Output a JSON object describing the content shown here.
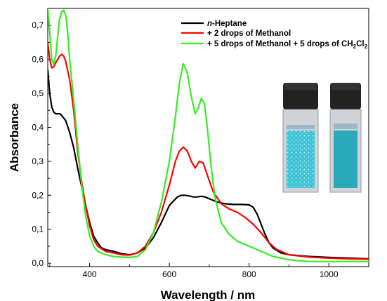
{
  "chart_data": {
    "type": "line",
    "xlabel": "Wavelength / nm",
    "ylabel": "Absorbance",
    "xlim": [
      295,
      1100
    ],
    "ylim": [
      -0.01,
      0.75
    ],
    "x_ticks": [
      400,
      600,
      800,
      1000
    ],
    "y_ticks": [
      "0,0",
      "0,1",
      "0,2",
      "0,3",
      "0,4",
      "0,5",
      "0,6",
      "0,7"
    ],
    "y_tick_values": [
      0.0,
      0.1,
      0.2,
      0.3,
      0.4,
      0.5,
      0.6,
      0.7
    ],
    "legend_position": "top-right",
    "series": [
      {
        "name": "n-Heptane",
        "name_italic": "n",
        "name_rest": "-Heptane",
        "color": "#000000",
        "points": [
          [
            295,
            0.57
          ],
          [
            300,
            0.5
          ],
          [
            305,
            0.46
          ],
          [
            310,
            0.445
          ],
          [
            315,
            0.44
          ],
          [
            320,
            0.44
          ],
          [
            325,
            0.44
          ],
          [
            330,
            0.435
          ],
          [
            340,
            0.42
          ],
          [
            350,
            0.385
          ],
          [
            360,
            0.34
          ],
          [
            370,
            0.28
          ],
          [
            380,
            0.225
          ],
          [
            390,
            0.17
          ],
          [
            400,
            0.12
          ],
          [
            410,
            0.08
          ],
          [
            420,
            0.06
          ],
          [
            430,
            0.045
          ],
          [
            440,
            0.04
          ],
          [
            460,
            0.035
          ],
          [
            480,
            0.028
          ],
          [
            500,
            0.025
          ],
          [
            520,
            0.03
          ],
          [
            540,
            0.045
          ],
          [
            560,
            0.075
          ],
          [
            580,
            0.12
          ],
          [
            600,
            0.17
          ],
          [
            620,
            0.195
          ],
          [
            630,
            0.2
          ],
          [
            640,
            0.2
          ],
          [
            650,
            0.198
          ],
          [
            660,
            0.195
          ],
          [
            670,
            0.195
          ],
          [
            680,
            0.197
          ],
          [
            690,
            0.195
          ],
          [
            700,
            0.19
          ],
          [
            720,
            0.18
          ],
          [
            740,
            0.175
          ],
          [
            760,
            0.173
          ],
          [
            780,
            0.173
          ],
          [
            800,
            0.172
          ],
          [
            810,
            0.165
          ],
          [
            820,
            0.145
          ],
          [
            830,
            0.115
          ],
          [
            840,
            0.085
          ],
          [
            850,
            0.06
          ],
          [
            860,
            0.045
          ],
          [
            880,
            0.03
          ],
          [
            900,
            0.025
          ],
          [
            950,
            0.02
          ],
          [
            1000,
            0.017
          ],
          [
            1050,
            0.015
          ],
          [
            1100,
            0.013
          ]
        ]
      },
      {
        "name": "+ 2 drops of Methanol",
        "color": "#ff0000",
        "points": [
          [
            295,
            0.65
          ],
          [
            300,
            0.6
          ],
          [
            305,
            0.575
          ],
          [
            310,
            0.578
          ],
          [
            315,
            0.59
          ],
          [
            320,
            0.6
          ],
          [
            325,
            0.61
          ],
          [
            330,
            0.615
          ],
          [
            335,
            0.61
          ],
          [
            340,
            0.595
          ],
          [
            350,
            0.54
          ],
          [
            360,
            0.45
          ],
          [
            370,
            0.33
          ],
          [
            380,
            0.24
          ],
          [
            390,
            0.17
          ],
          [
            400,
            0.11
          ],
          [
            410,
            0.07
          ],
          [
            420,
            0.05
          ],
          [
            440,
            0.035
          ],
          [
            460,
            0.03
          ],
          [
            480,
            0.025
          ],
          [
            500,
            0.024
          ],
          [
            520,
            0.03
          ],
          [
            540,
            0.05
          ],
          [
            560,
            0.09
          ],
          [
            580,
            0.15
          ],
          [
            600,
            0.23
          ],
          [
            615,
            0.3
          ],
          [
            625,
            0.33
          ],
          [
            635,
            0.342
          ],
          [
            645,
            0.33
          ],
          [
            655,
            0.3
          ],
          [
            665,
            0.28
          ],
          [
            675,
            0.3
          ],
          [
            685,
            0.295
          ],
          [
            695,
            0.26
          ],
          [
            710,
            0.21
          ],
          [
            730,
            0.175
          ],
          [
            750,
            0.16
          ],
          [
            770,
            0.15
          ],
          [
            790,
            0.135
          ],
          [
            810,
            0.115
          ],
          [
            830,
            0.09
          ],
          [
            850,
            0.06
          ],
          [
            870,
            0.04
          ],
          [
            900,
            0.025
          ],
          [
            950,
            0.018
          ],
          [
            1000,
            0.015
          ],
          [
            1050,
            0.013
          ],
          [
            1100,
            0.012
          ]
        ]
      },
      {
        "name": "+ 5 drops of Methanol + 5 drops of CH2Cl2",
        "name_main": "+ 5 drops of Methanol + 5 drops of CH",
        "name_sub1": "2",
        "name_mid": "Cl",
        "name_sub2": "2",
        "color": "#33ee22",
        "points": [
          [
            295,
            0.75
          ],
          [
            300,
            0.68
          ],
          [
            305,
            0.6
          ],
          [
            310,
            0.585
          ],
          [
            315,
            0.61
          ],
          [
            320,
            0.67
          ],
          [
            325,
            0.72
          ],
          [
            330,
            0.74
          ],
          [
            335,
            0.745
          ],
          [
            340,
            0.73
          ],
          [
            345,
            0.68
          ],
          [
            350,
            0.6
          ],
          [
            360,
            0.48
          ],
          [
            370,
            0.35
          ],
          [
            380,
            0.23
          ],
          [
            390,
            0.14
          ],
          [
            400,
            0.08
          ],
          [
            410,
            0.05
          ],
          [
            420,
            0.035
          ],
          [
            440,
            0.025
          ],
          [
            460,
            0.02
          ],
          [
            480,
            0.018
          ],
          [
            500,
            0.017
          ],
          [
            520,
            0.02
          ],
          [
            540,
            0.04
          ],
          [
            560,
            0.09
          ],
          [
            580,
            0.18
          ],
          [
            600,
            0.3
          ],
          [
            615,
            0.43
          ],
          [
            625,
            0.53
          ],
          [
            635,
            0.587
          ],
          [
            645,
            0.56
          ],
          [
            655,
            0.49
          ],
          [
            665,
            0.44
          ],
          [
            672,
            0.455
          ],
          [
            680,
            0.485
          ],
          [
            688,
            0.47
          ],
          [
            695,
            0.4
          ],
          [
            705,
            0.28
          ],
          [
            715,
            0.19
          ],
          [
            730,
            0.12
          ],
          [
            750,
            0.085
          ],
          [
            770,
            0.065
          ],
          [
            800,
            0.05
          ],
          [
            830,
            0.035
          ],
          [
            860,
            0.02
          ],
          [
            900,
            0.01
          ],
          [
            950,
            0.005
          ],
          [
            1000,
            0.005
          ],
          [
            1050,
            0.005
          ],
          [
            1100,
            0.005
          ]
        ]
      }
    ]
  }
}
